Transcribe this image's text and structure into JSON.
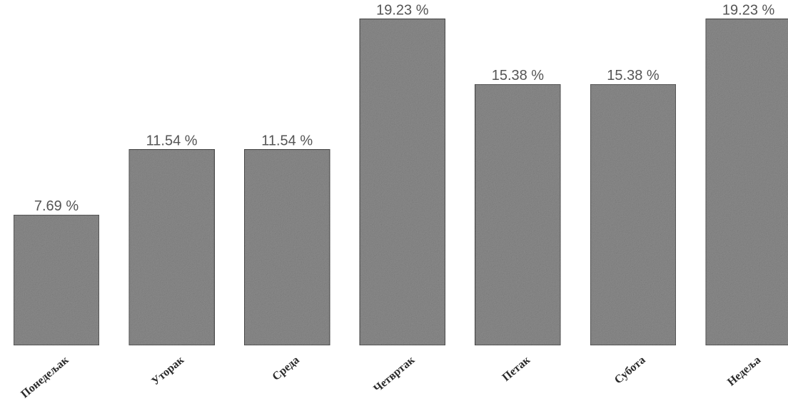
{
  "chart_data": {
    "type": "bar",
    "categories": [
      "Понедељак",
      "Уторак",
      "Среда",
      "Четвртак",
      "Петак",
      "Субота",
      "Недеља"
    ],
    "values": [
      7.69,
      11.54,
      11.54,
      19.23,
      15.38,
      15.38,
      19.23
    ],
    "value_labels": [
      "7.69 %",
      "11.54 %",
      "11.54 %",
      "19.23 %",
      "15.38 %",
      "15.38 %",
      "19.23 %"
    ],
    "title": "",
    "xlabel": "",
    "ylabel": "",
    "ylim": [
      0,
      20
    ],
    "grid": false,
    "legend": "none",
    "colors": {
      "bar_fill": "#8c8c8c",
      "bar_stroke": "#4a4a4a",
      "label": "#555555"
    }
  }
}
